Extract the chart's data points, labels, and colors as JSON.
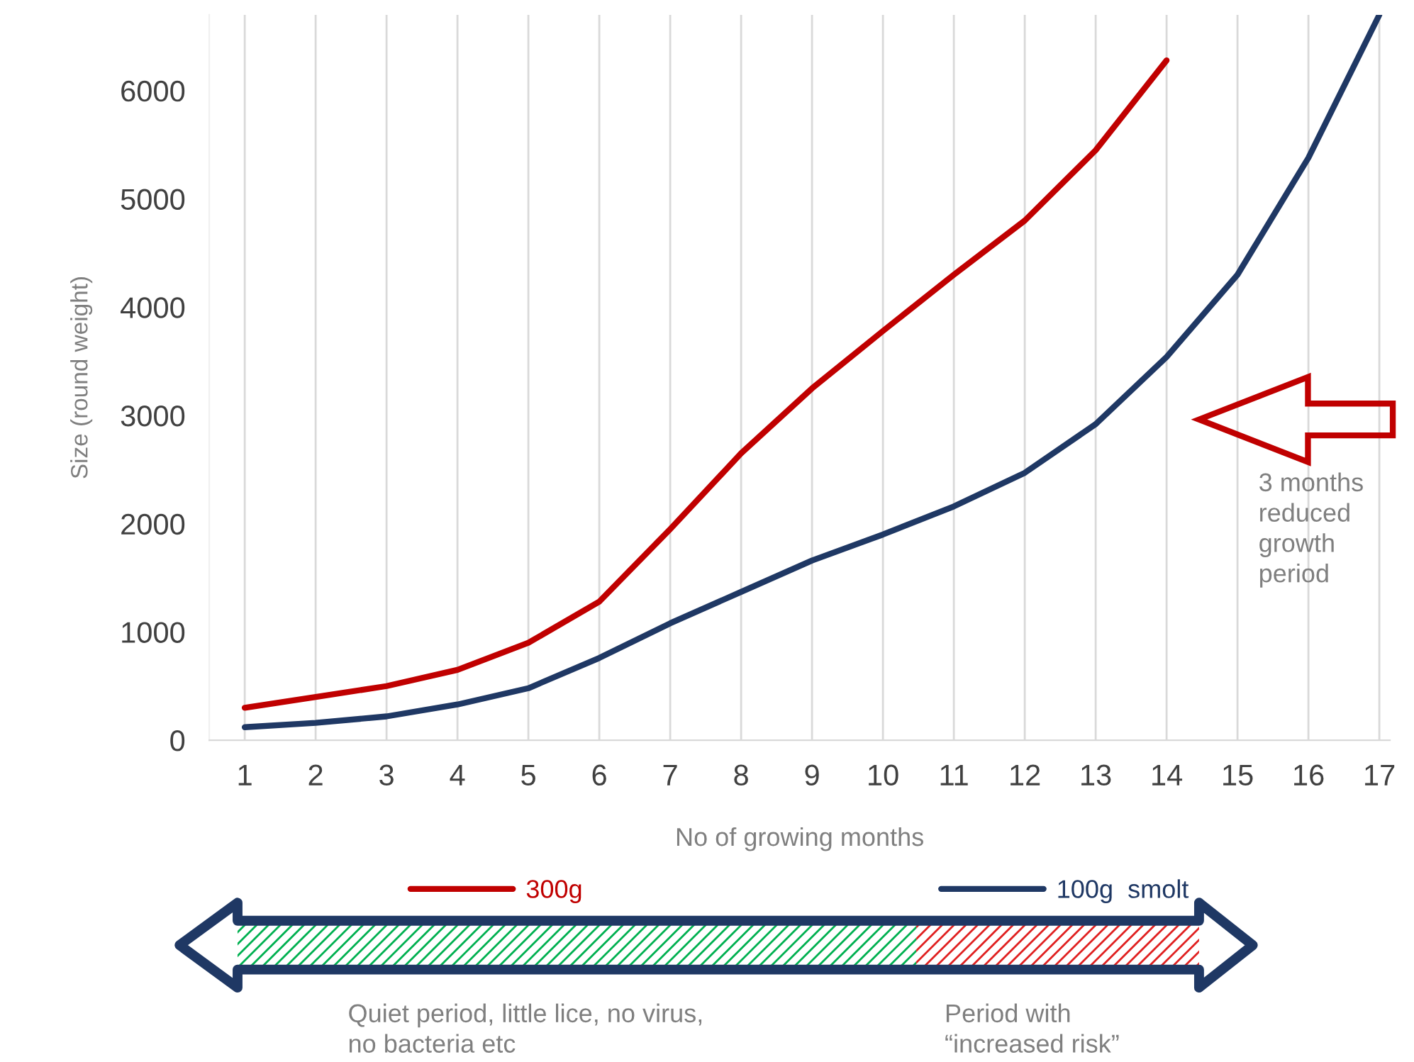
{
  "chart_data": {
    "type": "line",
    "xlabel": "No of growing months",
    "ylabel": "Size (round weight)",
    "categories": [
      "1",
      "2",
      "3",
      "4",
      "5",
      "6",
      "7",
      "8",
      "9",
      "10",
      "11",
      "12",
      "13",
      "14",
      "15",
      "16",
      "17"
    ],
    "series": [
      {
        "name": "300g",
        "color": "#c00000",
        "values": [
          300,
          400,
          500,
          650,
          900,
          1280,
          1950,
          2650,
          3250,
          3780,
          4300,
          4800,
          5450,
          6280,
          null,
          null,
          null
        ]
      },
      {
        "name": "100g  smolt",
        "color": "#1f3864",
        "values": [
          120,
          160,
          220,
          330,
          480,
          760,
          1080,
          1370,
          1660,
          1900,
          2160,
          2470,
          2920,
          3540,
          4300,
          5380,
          6700
        ]
      }
    ],
    "ylim": [
      0,
      6700
    ],
    "yticks": [
      0,
      1000,
      2000,
      3000,
      4000,
      5000,
      6000
    ],
    "grid": "x",
    "legend": "bottom",
    "marker": "none",
    "line_style": "solid",
    "annotations": [
      "3 months\nreduced\ngrowth\nperiod",
      "Quiet period, little lice, no virus,\nno bacteria etc",
      "Period with\n“increased risk”"
    ]
  }
}
